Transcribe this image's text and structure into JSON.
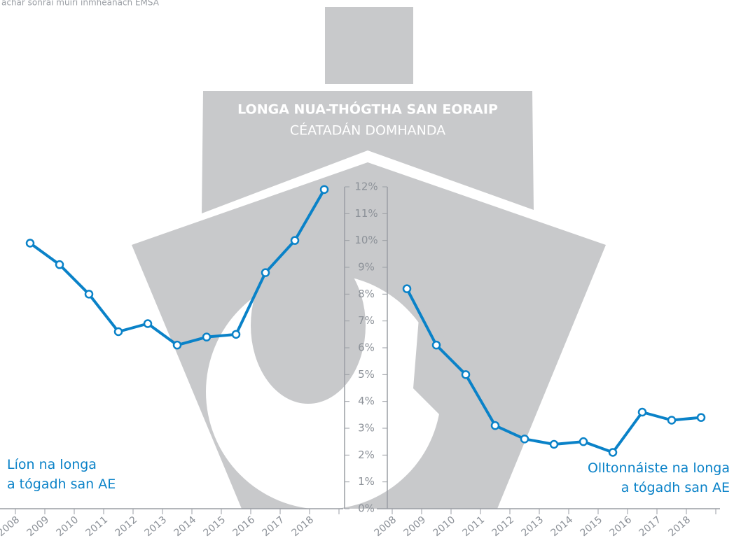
{
  "source": "achar sonraí muirí inmheánach EMSA",
  "title": "LONGA NUA-THÓGTHA SAN EORAIP",
  "subtitle": "CÉATADÁN DOMHANDA",
  "chart_data": [
    {
      "type": "line",
      "categories": [
        "2008",
        "2009",
        "2010",
        "2011",
        "2012",
        "2013",
        "2014",
        "2015",
        "2016",
        "2017",
        "2018"
      ],
      "series": [
        {
          "name": "Líon na longa\na tógadh san AE",
          "color": "#0a82c8",
          "values": [
            9.9,
            9.1,
            8.0,
            6.6,
            6.9,
            6.1,
            6.4,
            6.5,
            8.8,
            10.0,
            11.9
          ]
        }
      ],
      "ylim": [
        0,
        12
      ],
      "yticks": [
        {
          "value": 0,
          "label": "0%"
        },
        {
          "value": 1,
          "label": "1%"
        },
        {
          "value": 2,
          "label": "2%"
        },
        {
          "value": 3,
          "label": "3%"
        },
        {
          "value": 4,
          "label": "4%"
        },
        {
          "value": 5,
          "label": "5%"
        },
        {
          "value": 6,
          "label": "6%"
        },
        {
          "value": 7,
          "label": "7%"
        },
        {
          "value": 8,
          "label": "8%"
        },
        {
          "value": 9,
          "label": "9%"
        },
        {
          "value": 10,
          "label": "10%"
        },
        {
          "value": 11,
          "label": "11%"
        },
        {
          "value": 12,
          "label": "12%"
        }
      ]
    },
    {
      "type": "line",
      "categories": [
        "2008",
        "2009",
        "2010",
        "2011",
        "2012",
        "2013",
        "2014",
        "2015",
        "2016",
        "2017",
        "2018"
      ],
      "series": [
        {
          "name": "Olltonnáiste na longa\na tógadh san AE",
          "color": "#0a82c8",
          "values": [
            8.2,
            6.1,
            5.0,
            3.1,
            2.6,
            2.4,
            2.5,
            2.1,
            3.6,
            3.3,
            3.4
          ]
        }
      ],
      "ylim": [
        0,
        12
      ],
      "yticks": [
        {
          "value": 0,
          "label": "0%"
        },
        {
          "value": 1,
          "label": "1%"
        },
        {
          "value": 2,
          "label": "2%"
        },
        {
          "value": 3,
          "label": "3%"
        },
        {
          "value": 4,
          "label": "4%"
        },
        {
          "value": 5,
          "label": "5%"
        },
        {
          "value": 6,
          "label": "6%"
        },
        {
          "value": 7,
          "label": "7%"
        },
        {
          "value": 8,
          "label": "8%"
        },
        {
          "value": 9,
          "label": "9%"
        },
        {
          "value": 10,
          "label": "10%"
        },
        {
          "value": 11,
          "label": "11%"
        },
        {
          "value": 12,
          "label": "12%"
        }
      ]
    }
  ]
}
